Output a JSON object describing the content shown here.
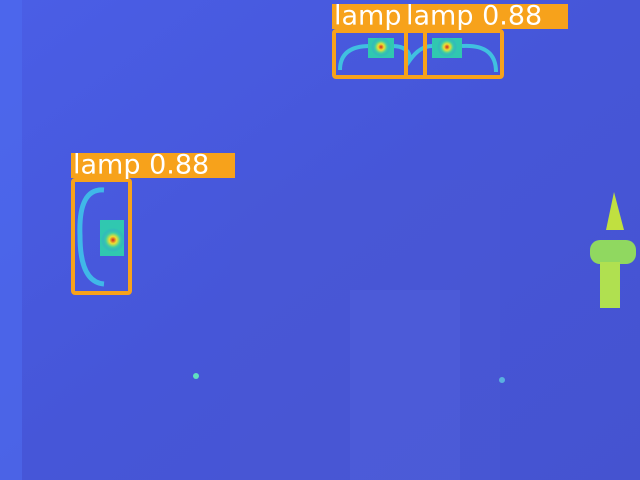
{
  "detections": [
    {
      "label": "lamp"
    },
    {
      "label": "lamp 0.88"
    },
    {
      "label": "lamp 0.88"
    }
  ]
}
